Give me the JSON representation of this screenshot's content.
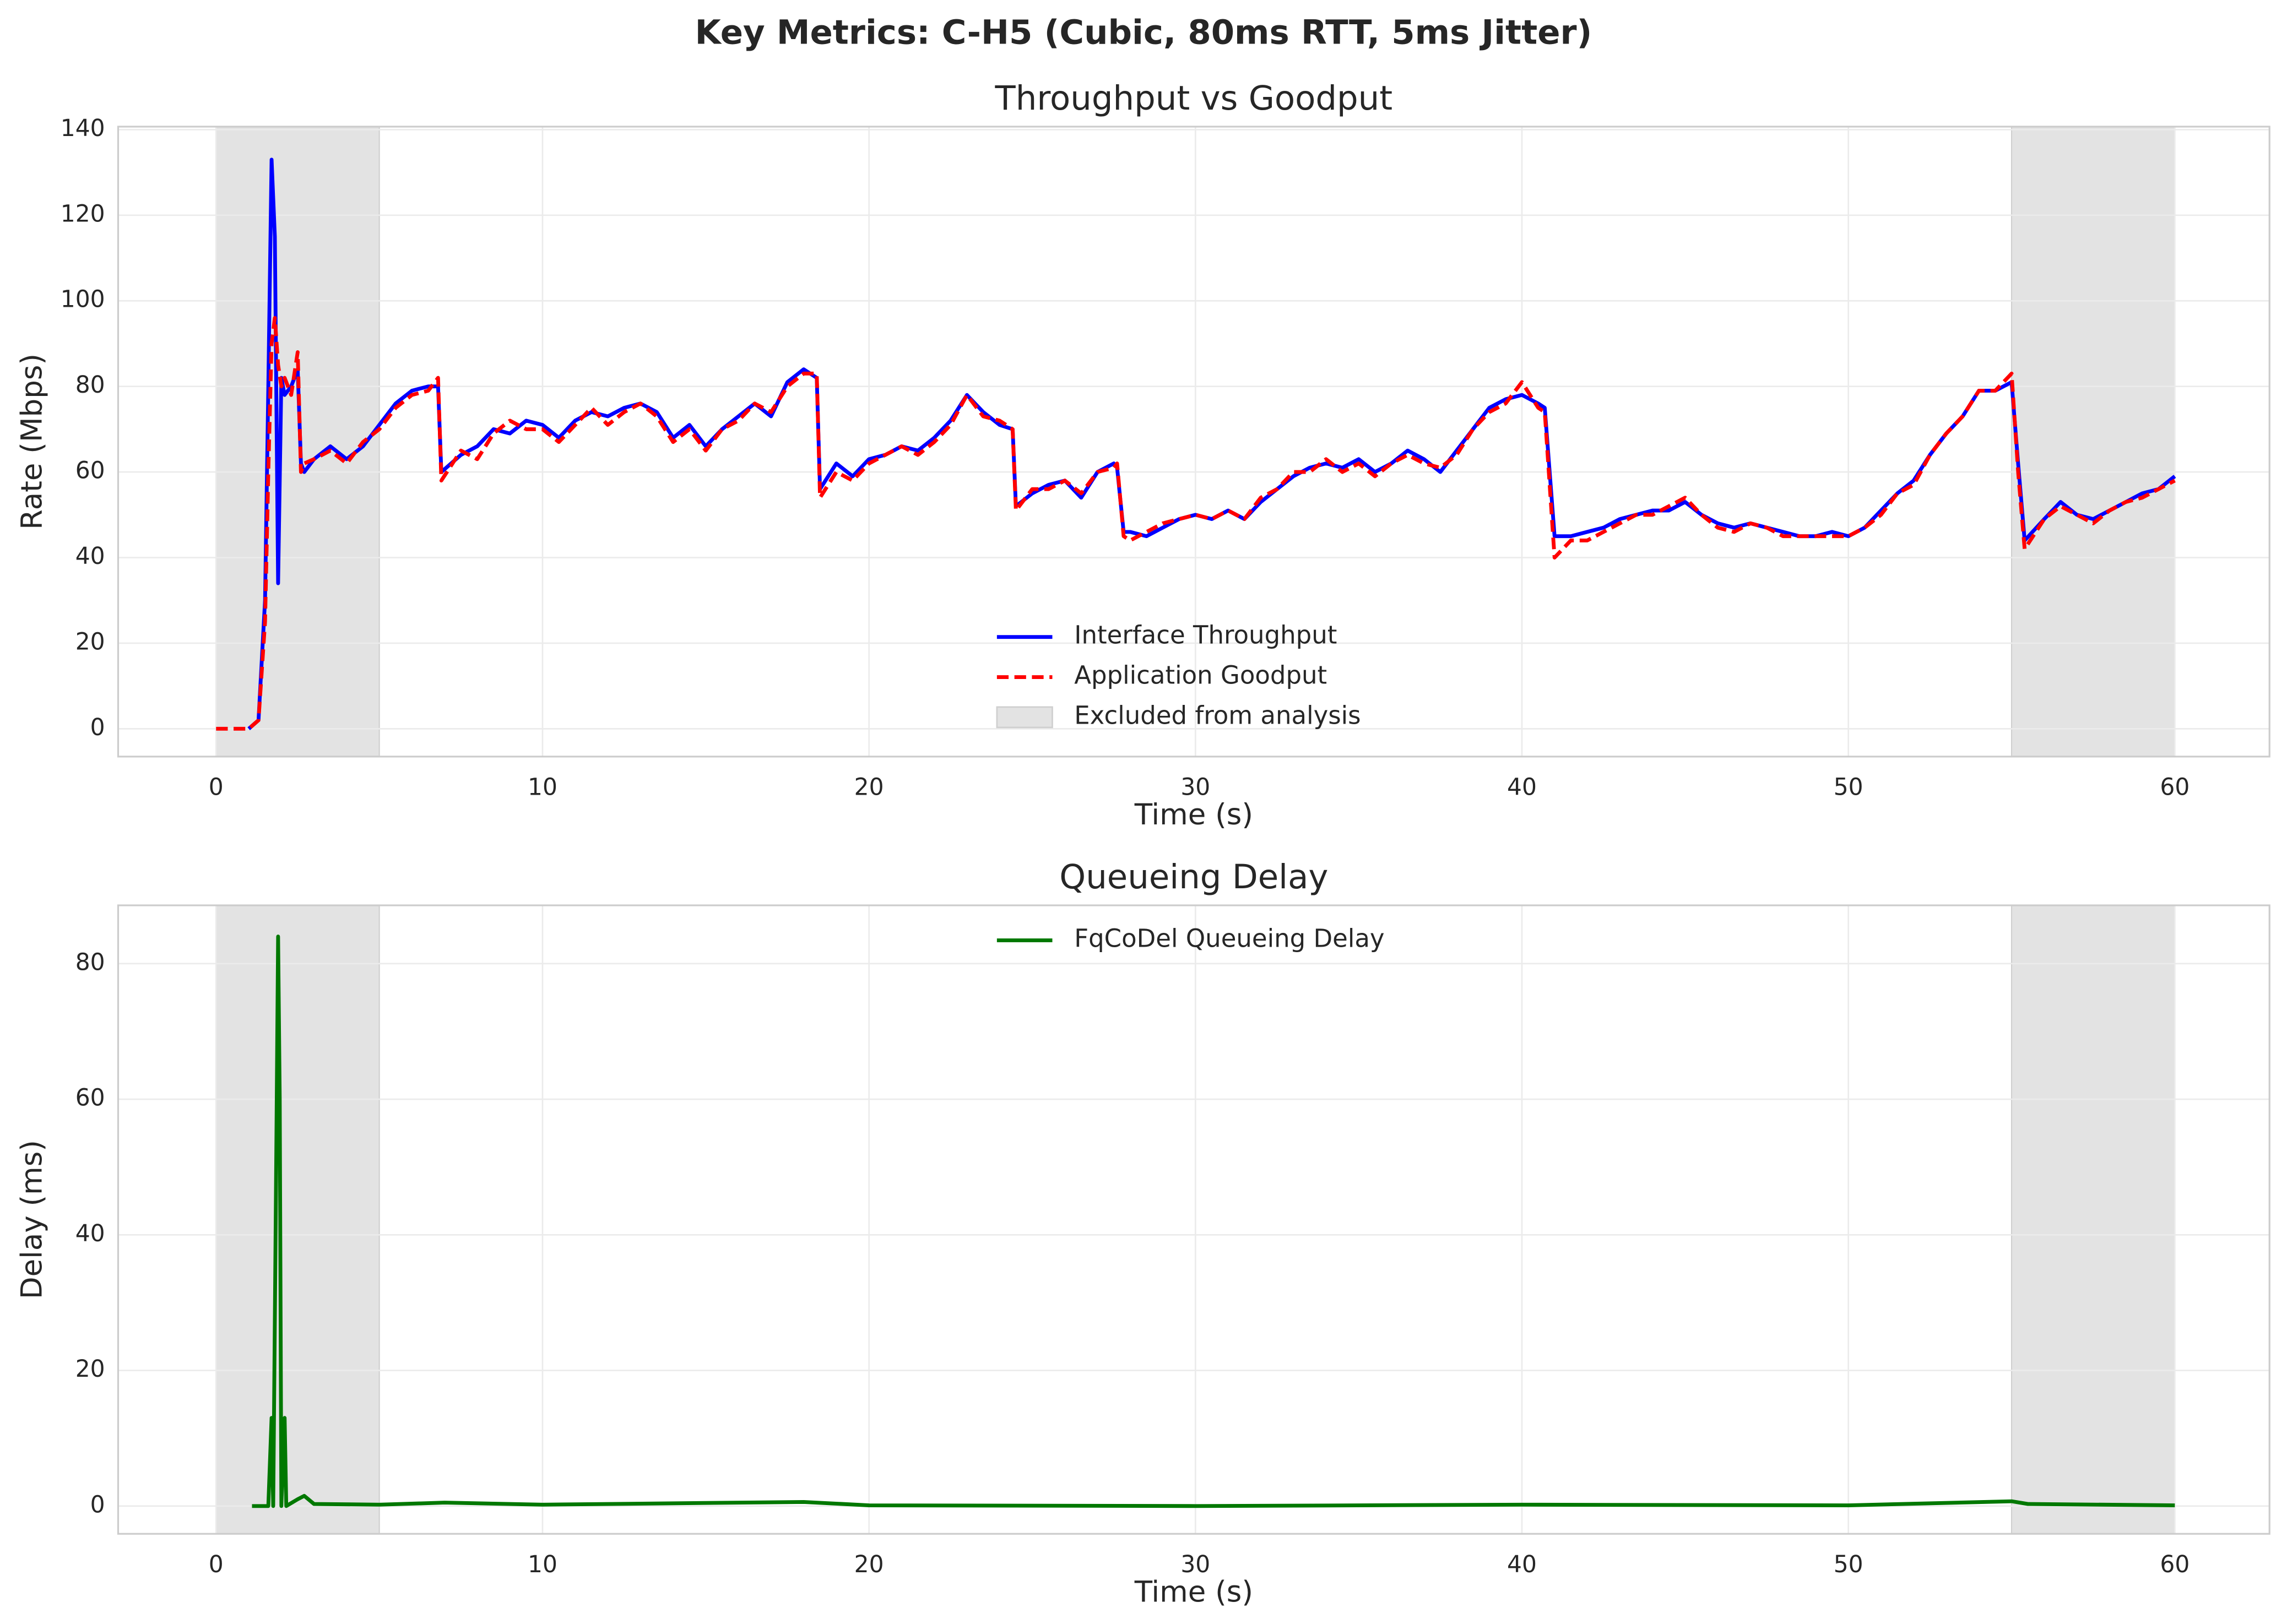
{
  "title": "Key Metrics: C-H5 (Cubic, 80ms RTT, 5ms Jitter)",
  "chart_data": [
    {
      "type": "line",
      "title": "Throughput vs Goodput",
      "xlabel": "Time (s)",
      "ylabel": "Rate (Mbps)",
      "x": [
        0,
        0.5,
        1,
        1.3,
        1.5,
        1.6,
        1.7,
        1.8,
        1.9,
        2.0,
        2.1,
        2.3,
        2.5,
        2.6,
        2.7,
        3,
        3.5,
        4,
        4.5,
        5,
        5.5,
        6,
        6.5,
        6.8,
        6.9,
        7.5,
        8,
        8.5,
        9,
        9.5,
        10,
        10.5,
        11,
        11.5,
        12,
        12.5,
        13,
        13.5,
        14,
        14.5,
        15,
        15.5,
        16,
        16.5,
        17,
        17.5,
        18,
        18.4,
        18.5,
        19,
        19.5,
        20,
        20.5,
        21,
        21.5,
        22,
        22.5,
        23,
        23.5,
        24,
        24.4,
        24.5,
        25,
        25.5,
        26,
        26.5,
        27,
        27.5,
        27.6,
        27.8,
        28,
        28.5,
        29,
        29.5,
        30,
        30.5,
        31,
        31.5,
        32,
        32.5,
        33,
        33.5,
        34,
        34.5,
        35,
        35.5,
        36,
        36.5,
        37,
        37.5,
        38,
        38.5,
        39,
        39.5,
        40,
        40.5,
        40.7,
        41,
        41.5,
        42,
        42.5,
        43,
        43.5,
        44,
        44.5,
        45,
        45.5,
        46,
        46.5,
        47,
        47.5,
        48,
        48.5,
        49,
        49.5,
        50,
        50.5,
        51,
        51.5,
        52,
        52.5,
        53,
        53.5,
        54,
        54.5,
        55,
        55.2,
        55.4,
        56,
        56.5,
        57,
        57.5,
        58,
        58.5,
        59,
        59.5,
        60
      ],
      "series": [
        {
          "name": "Interface Throughput",
          "color": "#0000ff",
          "dash": false,
          "values": [
            null,
            null,
            0,
            2,
            30,
            80,
            133,
            115,
            34,
            82,
            78,
            80,
            84,
            62,
            60,
            63,
            66,
            63,
            66,
            71,
            76,
            79,
            80,
            80,
            60,
            64,
            66,
            70,
            69,
            72,
            71,
            68,
            72,
            74,
            73,
            75,
            76,
            74,
            68,
            71,
            66,
            70,
            73,
            76,
            73,
            81,
            84,
            82,
            56,
            62,
            59,
            63,
            64,
            66,
            65,
            68,
            72,
            78,
            74,
            71,
            70,
            52,
            55,
            57,
            58,
            54,
            60,
            62,
            61,
            46,
            46,
            45,
            47,
            49,
            50,
            49,
            51,
            49,
            53,
            56,
            59,
            61,
            62,
            61,
            63,
            60,
            62,
            65,
            63,
            60,
            65,
            70,
            75,
            77,
            78,
            76,
            75,
            45,
            45,
            46,
            47,
            49,
            50,
            51,
            51,
            53,
            50,
            48,
            47,
            48,
            47,
            46,
            45,
            45,
            46,
            45,
            47,
            51,
            55,
            58,
            64,
            69,
            73,
            79,
            79,
            81,
            62,
            44,
            49,
            53,
            50,
            49,
            51,
            53,
            55,
            56,
            59
          ]
        },
        {
          "name": "Application Goodput",
          "color": "#ff0000",
          "dash": true,
          "values": [
            0,
            0,
            0,
            2,
            25,
            60,
            90,
            96,
            85,
            80,
            82,
            78,
            88,
            60,
            62,
            63,
            65,
            62,
            67,
            70,
            75,
            78,
            79,
            82,
            58,
            65,
            63,
            69,
            72,
            70,
            70,
            67,
            71,
            75,
            71,
            74,
            76,
            73,
            67,
            70,
            65,
            70,
            72,
            76,
            74,
            80,
            83,
            83,
            54,
            60,
            58,
            62,
            64,
            66,
            64,
            67,
            71,
            78,
            73,
            72,
            70,
            51,
            56,
            56,
            58,
            55,
            60,
            61,
            62,
            45,
            44,
            46,
            48,
            49,
            50,
            49,
            51,
            49,
            54,
            56,
            60,
            60,
            63,
            60,
            62,
            59,
            62,
            64,
            62,
            61,
            64,
            70,
            74,
            76,
            81,
            75,
            74,
            40,
            44,
            44,
            46,
            48,
            50,
            50,
            52,
            54,
            50,
            47,
            46,
            48,
            47,
            45,
            45,
            45,
            45,
            45,
            47,
            50,
            55,
            57,
            64,
            69,
            73,
            79,
            79,
            83,
            60,
            42,
            49,
            52,
            50,
            48,
            51,
            53,
            54,
            56,
            58
          ]
        }
      ],
      "shaded": {
        "name": "Excluded from analysis",
        "color": "#e3e3e3",
        "ranges": [
          [
            0,
            5
          ],
          [
            55,
            60
          ]
        ]
      },
      "xlim": [
        -3,
        62.9
      ],
      "ylim": [
        -6.5,
        140.7
      ],
      "xticks": [
        0,
        10,
        20,
        30,
        40,
        50,
        60
      ],
      "yticks": [
        0,
        20,
        40,
        60,
        80,
        100,
        120,
        140
      ],
      "grid": true,
      "legend": "lower center"
    },
    {
      "type": "line",
      "title": "Queueing Delay",
      "xlabel": "Time (s)",
      "ylabel": "Delay (ms)",
      "x": [
        1.1,
        1.6,
        1.7,
        1.75,
        1.85,
        1.9,
        1.95,
        2.0,
        2.1,
        2.15,
        2.5,
        2.7,
        3,
        5,
        7,
        10,
        18,
        20,
        30,
        40,
        50,
        55,
        55.5,
        60
      ],
      "series": [
        {
          "name": "FqCoDel Queueing Delay",
          "color": "#007800",
          "dash": false,
          "values": [
            0,
            0,
            13,
            0,
            55,
            84,
            60,
            0,
            13,
            0,
            1,
            1.5,
            0.3,
            0.2,
            0.5,
            0.2,
            0.6,
            0.1,
            0,
            0.2,
            0.1,
            0.7,
            0.3,
            0.1
          ]
        }
      ],
      "shaded": {
        "color": "#e3e3e3",
        "ranges": [
          [
            0,
            5
          ],
          [
            55,
            60
          ]
        ]
      },
      "xlim": [
        -3,
        62.9
      ],
      "ylim": [
        -4.1,
        88.6
      ],
      "xticks": [
        0,
        10,
        20,
        30,
        40,
        50,
        60
      ],
      "yticks": [
        0,
        20,
        40,
        60,
        80
      ],
      "grid": true,
      "legend": "upper center"
    }
  ]
}
